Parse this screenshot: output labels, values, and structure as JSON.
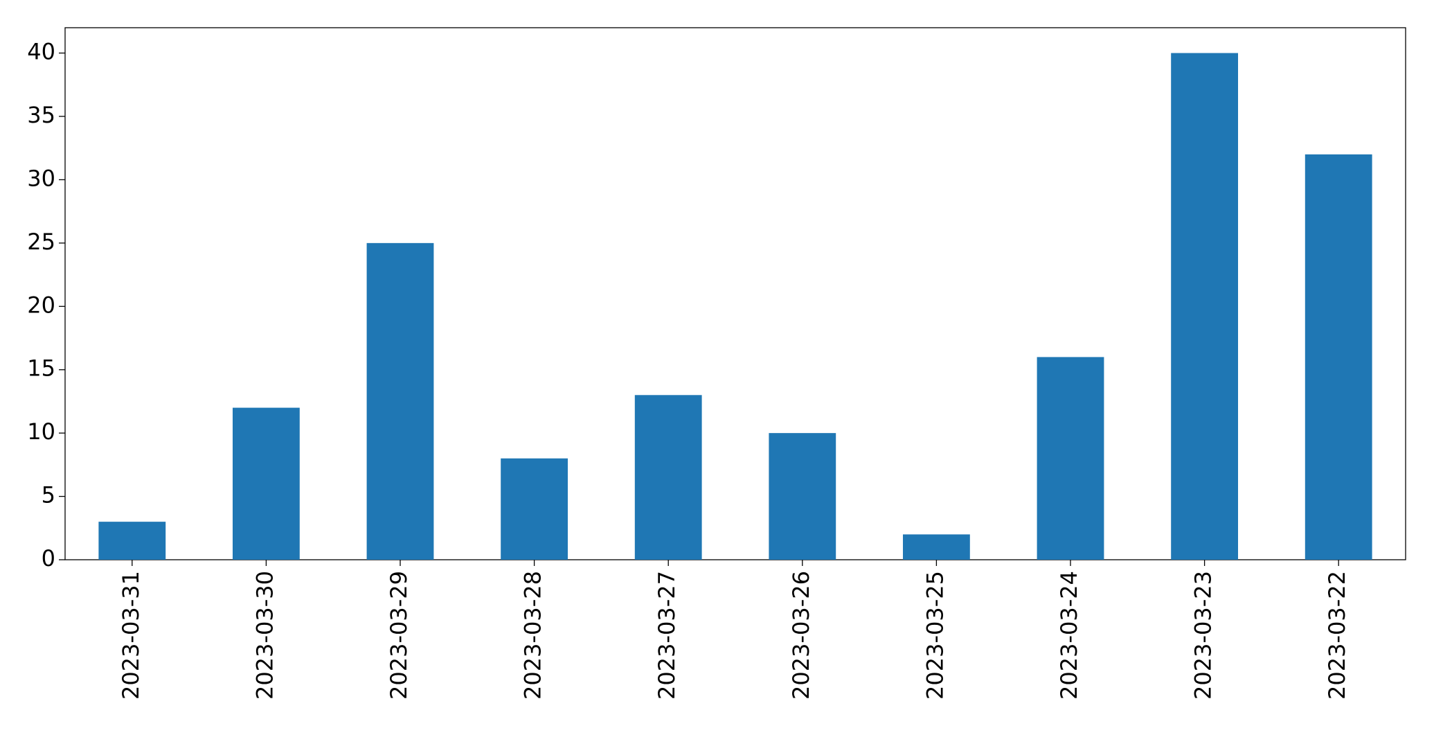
{
  "chart_data": {
    "type": "bar",
    "categories": [
      "2023-03-31",
      "2023-03-30",
      "2023-03-29",
      "2023-03-28",
      "2023-03-27",
      "2023-03-26",
      "2023-03-25",
      "2023-03-24",
      "2023-03-23",
      "2023-03-22"
    ],
    "values": [
      3,
      12,
      25,
      8,
      13,
      10,
      2,
      16,
      40,
      32
    ],
    "color": "#1f77b4",
    "ylim": [
      0,
      42
    ],
    "yticks": [
      0,
      5,
      10,
      15,
      20,
      25,
      30,
      35,
      40
    ],
    "grid": false
  }
}
